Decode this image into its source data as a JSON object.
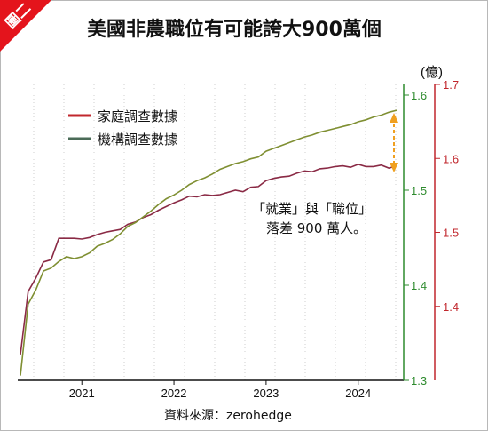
{
  "badge": "圖二",
  "chart_data": {
    "type": "line",
    "title": "美國非農職位有可能誇大900萬個",
    "unit": "(億)",
    "source": "資料來源：zerohedge",
    "annotation": [
      "「就業」與「職位」",
      "落差 900 萬人。"
    ],
    "colors": {
      "household": "#c1272d",
      "establishment": "#5a7a3a",
      "left_axis": "#2e8b2e",
      "right_axis": "#c1272d",
      "arrow": "#f0a020"
    },
    "x_ticks": [
      "2021",
      "2022",
      "2023",
      "2024"
    ],
    "y_left": {
      "range": [
        1.3,
        1.6
      ],
      "ticks": [
        "1.3",
        "1.4",
        "1.5",
        "1.6"
      ]
    },
    "y_right": {
      "range": [
        1.3,
        1.7
      ],
      "ticks": [
        "1.4",
        "1.5",
        "1.6",
        "1.7"
      ]
    },
    "series": [
      {
        "name": "家庭調查數據",
        "axis": "right",
        "x": [
          "2020-05",
          "2020-06",
          "2020-07",
          "2020-08",
          "2020-09",
          "2020-10",
          "2020-11",
          "2020-12",
          "2021-01",
          "2021-02",
          "2021-03",
          "2021-04",
          "2021-05",
          "2021-06",
          "2021-07",
          "2021-08",
          "2021-09",
          "2021-10",
          "2021-11",
          "2021-12",
          "2022-01",
          "2022-02",
          "2022-03",
          "2022-04",
          "2022-05",
          "2022-06",
          "2022-07",
          "2022-08",
          "2022-09",
          "2022-10",
          "2022-11",
          "2022-12",
          "2023-01",
          "2023-02",
          "2023-03",
          "2023-04",
          "2023-05",
          "2023-06",
          "2023-07",
          "2023-08",
          "2023-09",
          "2023-10",
          "2023-11",
          "2023-12",
          "2024-01",
          "2024-02",
          "2024-03",
          "2024-04",
          "2024-05",
          "2024-06"
        ],
        "values": [
          1.335,
          1.42,
          1.438,
          1.46,
          1.463,
          1.492,
          1.492,
          1.492,
          1.491,
          1.493,
          1.497,
          1.5,
          1.502,
          1.504,
          1.511,
          1.514,
          1.52,
          1.524,
          1.53,
          1.535,
          1.54,
          1.544,
          1.549,
          1.548,
          1.551,
          1.55,
          1.551,
          1.554,
          1.557,
          1.555,
          1.561,
          1.562,
          1.57,
          1.573,
          1.575,
          1.576,
          1.58,
          1.583,
          1.582,
          1.586,
          1.587,
          1.589,
          1.59,
          1.588,
          1.592,
          1.589,
          1.589,
          1.591,
          1.587,
          1.59
        ]
      },
      {
        "name": "機構調查數據",
        "axis": "left",
        "x": [
          "2020-05",
          "2020-06",
          "2020-07",
          "2020-08",
          "2020-09",
          "2020-10",
          "2020-11",
          "2020-12",
          "2021-01",
          "2021-02",
          "2021-03",
          "2021-04",
          "2021-05",
          "2021-06",
          "2021-07",
          "2021-08",
          "2021-09",
          "2021-10",
          "2021-11",
          "2021-12",
          "2022-01",
          "2022-02",
          "2022-03",
          "2022-04",
          "2022-05",
          "2022-06",
          "2022-07",
          "2022-08",
          "2022-09",
          "2022-10",
          "2022-11",
          "2022-12",
          "2023-01",
          "2023-02",
          "2023-03",
          "2023-04",
          "2023-05",
          "2023-06",
          "2023-07",
          "2023-08",
          "2023-09",
          "2023-10",
          "2023-11",
          "2023-12",
          "2024-01",
          "2024-02",
          "2024-03",
          "2024-04",
          "2024-05",
          "2024-06"
        ],
        "values": [
          1.305,
          1.38,
          1.395,
          1.415,
          1.418,
          1.425,
          1.43,
          1.428,
          1.43,
          1.434,
          1.441,
          1.444,
          1.448,
          1.454,
          1.462,
          1.466,
          1.472,
          1.478,
          1.485,
          1.491,
          1.495,
          1.5,
          1.506,
          1.51,
          1.513,
          1.517,
          1.522,
          1.525,
          1.528,
          1.53,
          1.533,
          1.535,
          1.541,
          1.544,
          1.547,
          1.55,
          1.553,
          1.556,
          1.558,
          1.561,
          1.563,
          1.565,
          1.567,
          1.569,
          1.572,
          1.574,
          1.577,
          1.579,
          1.582,
          1.584
        ]
      }
    ]
  }
}
